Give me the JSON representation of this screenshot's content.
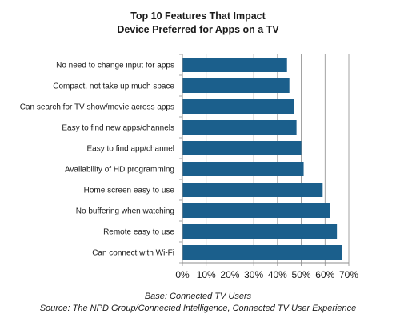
{
  "chart_data": {
    "type": "bar",
    "orientation": "horizontal",
    "title_lines": [
      "Top 10 Features That Impact",
      "Device Preferred for Apps on a TV"
    ],
    "categories": [
      "No need to change input for apps",
      "Compact, not take up much space",
      "Can search for TV show/movie across apps",
      "Easy to find new apps/channels",
      "Easy to find app/channel",
      "Availability of HD programming",
      "Home screen easy to use",
      "No buffering when watching",
      "Remote easy to use",
      "Can connect with Wi-Fi"
    ],
    "values": [
      44,
      45,
      47,
      48,
      50,
      51,
      59,
      62,
      65,
      67
    ],
    "x_ticks": [
      "0%",
      "10%",
      "20%",
      "30%",
      "40%",
      "50%",
      "60%",
      "70%"
    ],
    "xlim": [
      0,
      70
    ],
    "grid": true,
    "bar_color": "#1b5f8c",
    "footnote_lines": [
      "Base: Connected TV Users",
      "Source: The NPD Group/Connected Intelligence, Connected TV User Experience"
    ]
  }
}
